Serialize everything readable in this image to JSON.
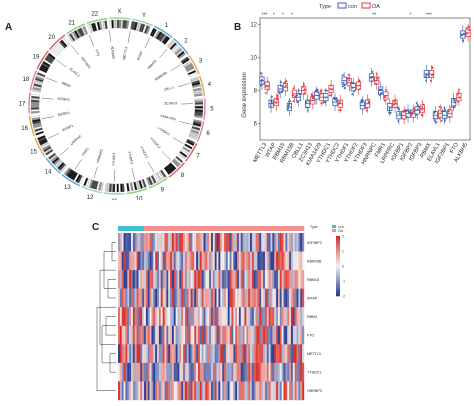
{
  "panelA": {
    "letter": "A",
    "chromosomes": [
      "1",
      "2",
      "3",
      "4",
      "5",
      "6",
      "7",
      "8",
      "9",
      "10",
      "11",
      "12",
      "13",
      "14",
      "15",
      "16",
      "17",
      "18",
      "19",
      "20",
      "21",
      "22",
      "X",
      "Y"
    ],
    "visible_chrom_labels": [
      "X",
      "Y",
      "1",
      "2",
      "3",
      "4",
      "5",
      "6",
      "7",
      "8",
      "9",
      "10",
      "11",
      "12",
      "13",
      "14",
      "15",
      "16",
      "17",
      "18",
      "19",
      "20",
      "21",
      "22"
    ],
    "genes": [
      "METTL3",
      "WTAP",
      "RBM15",
      "RBM15B",
      "CBLL1",
      "ZC3H13",
      "KIAA1429",
      "YTHDC1",
      "YTHDC2",
      "YTHDF1",
      "YTHDF2",
      "YTHDF3",
      "HNRNPC",
      "FMR1",
      "LRPPRC",
      "IGFBP1",
      "IGFBP2",
      "IGFBP3",
      "RBMX",
      "ELAVL1",
      "IGF2BP1",
      "FTO",
      "ALKBH5"
    ]
  },
  "panelB": {
    "letter": "B",
    "legend_title": "Type",
    "legend_items": [
      {
        "label": "con",
        "color": "#3b5fb0"
      },
      {
        "label": "OA",
        "color": "#e0393e"
      }
    ],
    "ylabel": "Gene expression",
    "yticks": [
      "6",
      "8",
      "10",
      "12"
    ],
    "significance": [
      "***",
      "*",
      "*",
      "*",
      "",
      "",
      "",
      "",
      "",
      "",
      "",
      "",
      "**",
      "",
      "",
      "",
      "*",
      "",
      "***",
      "",
      "",
      "",
      ""
    ]
  },
  "panelC": {
    "letter": "C",
    "legend_title": "Type",
    "legend_items": [
      {
        "label": "con",
        "color": "#3fbfcf"
      },
      {
        "label": "OA",
        "color": "#f09090"
      }
    ],
    "row_labels": [
      "IGF2BP2",
      "RBM15B",
      "RBM15",
      "WTAP",
      "RBMX",
      "FTO",
      "METTL3",
      "YTHDC1",
      "HNRNPC"
    ],
    "scale_ticks": [
      "2",
      "1",
      "0",
      "-1",
      "-2"
    ]
  },
  "colors": {
    "con": "#3b5fb0",
    "oa": "#e0393e",
    "heat_high": "#d7302a",
    "heat_low": "#2c3f94",
    "heat_mid": "#f4f0ee",
    "bar_con": "#3fbfcf",
    "bar_oa": "#f09090"
  },
  "chart_data": [
    {
      "type": "box",
      "categories": [
        "METTL3",
        "WTAP",
        "RBM15",
        "RBM15B",
        "CBLL1",
        "ZC3H13",
        "KIAA1429",
        "YTHDC1",
        "YTHDC2",
        "YTHDF1",
        "YTHDF2",
        "YTHDF3",
        "HNRNPC",
        "FMR1",
        "LRPPRC",
        "IGFBP1",
        "IGFBP2",
        "IGFBP3",
        "RBMX",
        "ELAVL1",
        "IGF2BP1",
        "FTO",
        "ALKBH5"
      ],
      "ylabel": "Gene expression",
      "ylim": [
        5.0,
        12.4
      ],
      "series": [
        {
          "name": "con",
          "medians": [
            8.6,
            7.2,
            8.1,
            7.0,
            7.6,
            7.2,
            7.7,
            7.6,
            7.3,
            8.6,
            8.2,
            7.1,
            8.8,
            8.0,
            7.0,
            6.5,
            6.6,
            6.8,
            9.0,
            6.5,
            6.5,
            7.3,
            11.4
          ]
        },
        {
          "name": "OA",
          "medians": [
            8.3,
            7.3,
            8.2,
            7.8,
            8.0,
            7.4,
            7.6,
            8.1,
            7.2,
            8.5,
            8.3,
            7.2,
            8.6,
            7.7,
            7.2,
            6.5,
            6.6,
            6.9,
            9.0,
            6.6,
            6.6,
            7.6,
            11.5
          ]
        }
      ]
    },
    {
      "type": "heatmap",
      "rows": [
        "IGF2BP2",
        "RBM15B",
        "RBM15",
        "WTAP",
        "RBMX",
        "FTO",
        "METTL3",
        "YTHDC1",
        "HNRNPC"
      ],
      "legend": [
        "con",
        "OA"
      ],
      "scale": [
        -2,
        2
      ],
      "n_con": 14,
      "n_oa": 86
    }
  ]
}
